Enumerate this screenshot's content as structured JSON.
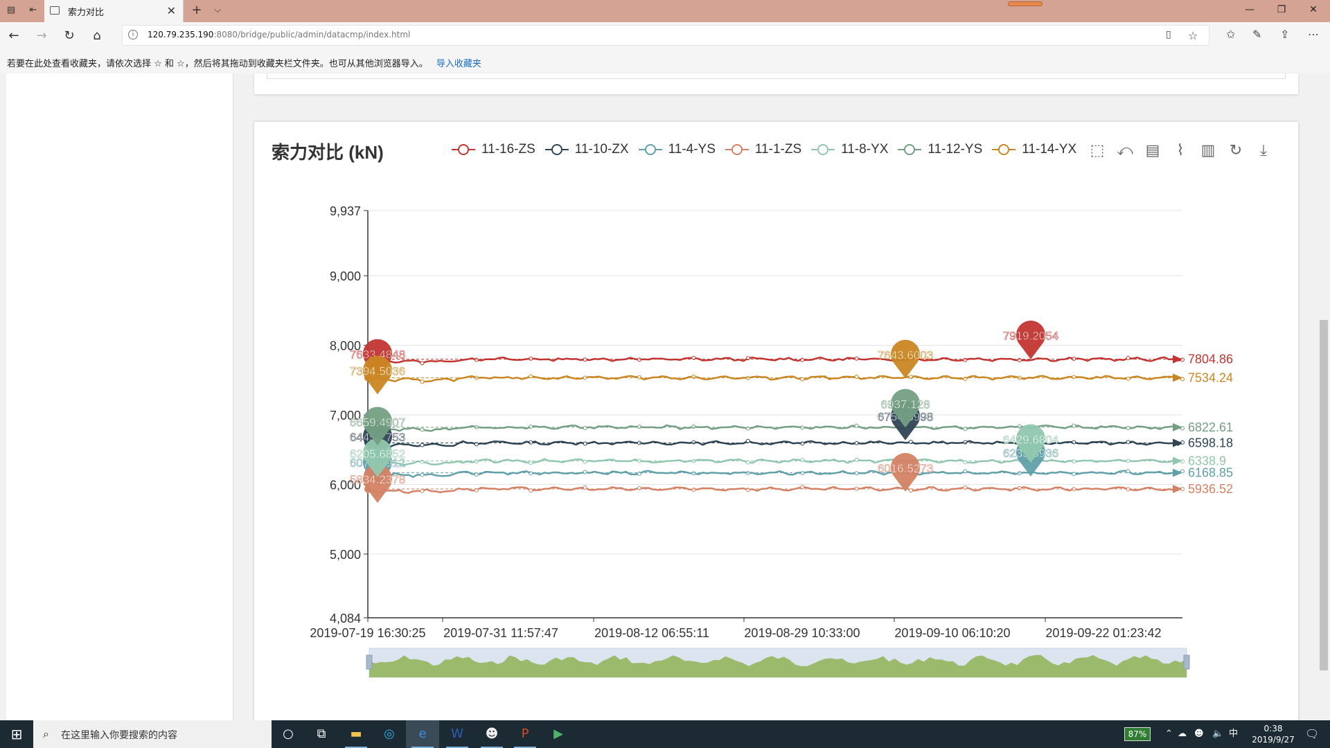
{
  "browser": {
    "tab_title": "索力对比",
    "url_prefix": "120.79.235.190",
    "url_rest": ":8080/bridge/public/admin/datacmp/index.html",
    "fav_prompt": "若要在此处查看收藏夹，请依次选择 ☆ 和 ☆，然后将其拖动到收藏夹栏文件夹。也可从其他浏览器导入。",
    "fav_import": "导入收藏夹"
  },
  "taskbar": {
    "search_placeholder": "在这里输入你要搜索的内容",
    "battery": "87%",
    "ime": "中",
    "time": "0:38",
    "date": "2019/9/27"
  },
  "chart_data": {
    "type": "line",
    "title": "索力对比 (kN)",
    "x": [
      "2019-07-19 16:30:25",
      "2019-07-31 11:57:47",
      "2019-08-12 06:55:11",
      "2019-08-29 10:33:00",
      "2019-09-10 06:10:20",
      "2019-09-22 01:23:42"
    ],
    "x_tick_labels": [
      "2019-07-19 16:30:25",
      "2019-07-31 11:57:47",
      "2019-08-12 06:55:11",
      "2019-08-29 10:33:00",
      "2019-09-10 06:10:20",
      "2019-09-22 01:23:42"
    ],
    "ylim": [
      4084,
      9937
    ],
    "y_tick_labels": [
      "4,084",
      "5,000",
      "6,000",
      "7,000",
      "8,000",
      "9,000",
      "9,937"
    ],
    "grid": true,
    "legend_position": "top",
    "series": [
      {
        "name": "11-16-ZS",
        "color": "#c23531",
        "base": 7800,
        "last": "7804.86",
        "max_label": "7919.2054",
        "min_label": "7633.4848"
      },
      {
        "name": "11-10-ZX",
        "color": "#2f4554",
        "base": 6598,
        "last": "6598.18",
        "max_label": "6754.5998",
        "min_label": "6445.2753"
      },
      {
        "name": "11-4-YS",
        "color": "#61a0a8",
        "base": 6168,
        "last": "6168.85",
        "max_label": "6235.8936",
        "min_label": "6075.9912"
      },
      {
        "name": "11-1-ZS",
        "color": "#d48265",
        "base": 5936,
        "last": "5936.52",
        "max_label": "6016.5273",
        "min_label": "5834.2378"
      },
      {
        "name": "11-8-YX",
        "color": "#91c7ae",
        "base": 6338,
        "last": "6338.9",
        "max_label": "6429.6804",
        "min_label": "6205.6852"
      },
      {
        "name": "11-12-YS",
        "color": "#749f83",
        "base": 6822,
        "last": "6822.61",
        "max_label": "6937.128",
        "min_label": "6659.4907"
      },
      {
        "name": "11-14-YX",
        "color": "#ca8622",
        "base": 7534,
        "last": "7534.24",
        "max_label": "7643.6003",
        "min_label": "7394.5036"
      }
    ]
  }
}
